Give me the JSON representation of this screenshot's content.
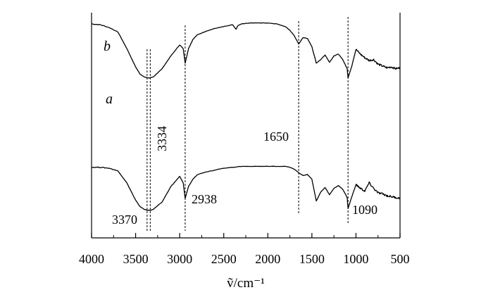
{
  "chart_data": {
    "type": "line",
    "title": "",
    "xlabel": "ṽ/cm⁻¹",
    "ylabel": "",
    "xlim": [
      4000,
      500
    ],
    "x_reversed": true,
    "grid": false,
    "x_ticks": [
      "4000",
      "3500",
      "3000",
      "2500",
      "2000",
      "1500",
      "1000",
      "500"
    ],
    "series": [
      {
        "name": "b",
        "x": [
          4000,
          3900,
          3800,
          3700,
          3600,
          3500,
          3450,
          3400,
          3370,
          3334,
          3300,
          3200,
          3100,
          3000,
          2960,
          2938,
          2900,
          2850,
          2800,
          2700,
          2600,
          2500,
          2400,
          2360,
          2340,
          2300,
          2200,
          2100,
          2000,
          1900,
          1800,
          1750,
          1700,
          1650,
          1600,
          1550,
          1500,
          1450,
          1400,
          1350,
          1300,
          1250,
          1200,
          1150,
          1100,
          1090,
          1050,
          1000,
          950,
          900,
          850,
          800,
          750,
          700,
          650,
          600,
          550,
          500
        ],
        "y": [
          97,
          96,
          93,
          88,
          70,
          50,
          42,
          39,
          38,
          38,
          39,
          48,
          62,
          74,
          70,
          54,
          70,
          80,
          85,
          89,
          92,
          94,
          96,
          91,
          95,
          97,
          98,
          98,
          98,
          97,
          94,
          90,
          84,
          75,
          82,
          81,
          72,
          54,
          58,
          63,
          55,
          62,
          64,
          58,
          48,
          38,
          50,
          69,
          64,
          60,
          57,
          58,
          53,
          51,
          49,
          50,
          48,
          49
        ]
      },
      {
        "name": "a",
        "x": [
          4000,
          3900,
          3800,
          3700,
          3600,
          3500,
          3450,
          3400,
          3370,
          3334,
          3300,
          3200,
          3100,
          3000,
          2960,
          2938,
          2900,
          2850,
          2800,
          2700,
          2600,
          2500,
          2400,
          2300,
          2200,
          2100,
          2000,
          1900,
          1800,
          1750,
          1700,
          1650,
          1600,
          1550,
          1500,
          1450,
          1400,
          1350,
          1300,
          1250,
          1200,
          1150,
          1100,
          1090,
          1050,
          1000,
          950,
          900,
          850,
          800,
          750,
          700,
          650,
          600,
          550,
          500
        ],
        "y": [
          31,
          31,
          30,
          27,
          14,
          -5,
          -12,
          -15,
          -16,
          -16,
          -15,
          -7,
          10,
          21,
          14,
          -3,
          10,
          18,
          23,
          26,
          28,
          30,
          31,
          32,
          32,
          32,
          32,
          32,
          32,
          31,
          29,
          25,
          22,
          23,
          18,
          -6,
          4,
          9,
          1,
          8,
          11,
          7,
          -2,
          -14,
          -2,
          12,
          8,
          5,
          14,
          8,
          3,
          2,
          0,
          -1,
          -2,
          -3
        ]
      }
    ],
    "annotations": [
      {
        "label": "3370",
        "x": 3370
      },
      {
        "label": "3334",
        "x": 3334
      },
      {
        "label": "2938",
        "x": 2938
      },
      {
        "label": "1650",
        "x": 1650
      },
      {
        "label": "1090",
        "x": 1090
      }
    ]
  }
}
